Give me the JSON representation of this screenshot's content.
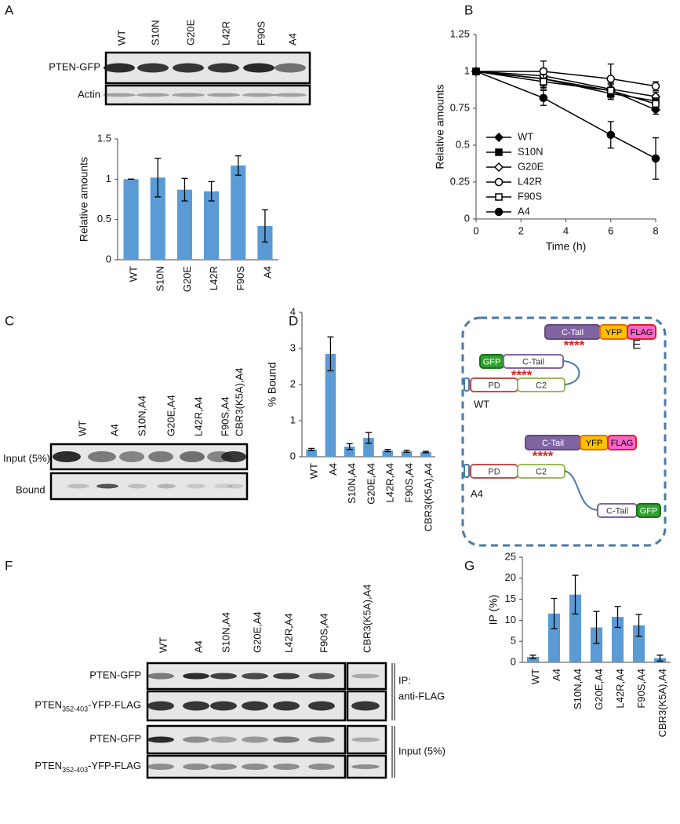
{
  "panels": [
    "A",
    "B",
    "C",
    "D",
    "E",
    "F",
    "G"
  ],
  "blot_a": {
    "lanes": [
      "WT",
      "S10N",
      "G20E",
      "L42R",
      "F90S",
      "A4"
    ],
    "rows": [
      "PTEN-GFP",
      "Actin"
    ]
  },
  "blot_c": {
    "lanes": [
      "WT",
      "A4",
      "S10N,A4",
      "G20E,A4",
      "L42R,A4",
      "F90S,A4",
      "CBR3(K5A),A4"
    ],
    "rows": [
      "Input (5%)",
      "Bound"
    ]
  },
  "blot_f": {
    "lanes": [
      "WT",
      "A4",
      "S10N,A4",
      "G20E,A4",
      "L42R,A4",
      "F90S,A4",
      "CBR3(K5A),A4"
    ],
    "rows": [
      {
        "main": "PTEN-GFP"
      },
      {
        "main": "PTEN",
        "sub": "352-403",
        "tail": "-YFP-FLAG"
      },
      {
        "main": "PTEN-GFP"
      },
      {
        "main": "PTEN",
        "sub": "352-403",
        "tail": "-YFP-FLAG"
      }
    ],
    "groups": [
      {
        "lines": [
          "IP:",
          "anti-FLAG"
        ]
      },
      {
        "lines": [
          "Input (5%)"
        ]
      }
    ]
  },
  "diagram": {
    "top": {
      "tail": "C-Tail",
      "yfp": "YFP",
      "flag": "FLAG",
      "stars": "****"
    },
    "wt": {
      "gfp": "GFP",
      "tail": "C-Tail",
      "stars": "****",
      "pd": "PD",
      "c2": "C2",
      "label": "WT"
    },
    "a4_top": {
      "tail": "C-Tail",
      "yfp": "YFP",
      "flag": "FLAG",
      "stars": "****"
    },
    "a4": {
      "pd": "PD",
      "c2": "C2",
      "label": "A4",
      "tail": "C-Tail",
      "gfp": "GFP"
    }
  },
  "chart_data": [
    {
      "type": "bar",
      "y_label": "Relative amounts",
      "color": "#5b9bd5",
      "categories": [
        "WT",
        "S10N",
        "G20E",
        "L42R",
        "F90S",
        "A4"
      ],
      "values": [
        1.0,
        1.02,
        0.87,
        0.85,
        1.17,
        0.42
      ],
      "errors": [
        0.0,
        0.24,
        0.14,
        0.12,
        0.12,
        0.2
      ],
      "ylim": [
        0,
        1.5
      ],
      "yticks": [
        0,
        0.5,
        1,
        1.5
      ]
    },
    {
      "type": "line",
      "x_label": "Time (h)",
      "y_label": "Relative amounts",
      "x": [
        0,
        3,
        6,
        8
      ],
      "series": [
        {
          "name": "WT",
          "color": "#000000",
          "marker": "diamond",
          "filled": true,
          "values": [
            1,
            0.95,
            0.87,
            0.74
          ],
          "errors": [
            0,
            0.05,
            0.04,
            0.03
          ]
        },
        {
          "name": "S10N",
          "color": "#000000",
          "marker": "square",
          "filled": true,
          "values": [
            1,
            0.95,
            0.85,
            0.8
          ],
          "errors": [
            0,
            0.06,
            0.04,
            0.04
          ]
        },
        {
          "name": "G20E",
          "color": "#000000",
          "marker": "diamond",
          "filled": false,
          "values": [
            1,
            0.97,
            0.88,
            0.83
          ],
          "errors": [
            0,
            0.05,
            0.04,
            0.03
          ]
        },
        {
          "name": "L42R",
          "color": "#000000",
          "marker": "circle",
          "filled": false,
          "values": [
            1,
            1.0,
            0.95,
            0.9
          ],
          "errors": [
            0,
            0.07,
            0.1,
            0.03
          ]
        },
        {
          "name": "F90S",
          "color": "#000000",
          "marker": "square",
          "filled": false,
          "values": [
            1,
            0.93,
            0.87,
            0.78
          ],
          "errors": [
            0,
            0.05,
            0.05,
            0.04
          ]
        },
        {
          "name": "A4",
          "color": "#000000",
          "marker": "circle",
          "filled": true,
          "values": [
            1,
            0.82,
            0.57,
            0.41
          ],
          "errors": [
            0,
            0.05,
            0.09,
            0.14
          ]
        }
      ],
      "xlim": [
        0,
        8
      ],
      "xticks": [
        0,
        2,
        4,
        6,
        8
      ],
      "ylim": [
        0,
        1.25
      ],
      "yticks": [
        0,
        0.25,
        0.5,
        0.75,
        1,
        1.25
      ]
    },
    {
      "type": "bar",
      "y_label": "% Bound",
      "color": "#5b9bd5",
      "categories": [
        "WT",
        "A4",
        "S10N,A4",
        "G20E,A4",
        "L42R,A4",
        "F90S,A4",
        "CBR3(K5A),A4"
      ],
      "values": [
        0.2,
        2.85,
        0.28,
        0.52,
        0.17,
        0.15,
        0.13
      ],
      "errors": [
        0.03,
        0.47,
        0.08,
        0.15,
        0.03,
        0.03,
        0.02
      ],
      "ylim": [
        0,
        4
      ],
      "yticks": [
        0,
        1,
        2,
        3,
        4
      ]
    },
    {
      "type": "bar",
      "y_label": "IP (%)",
      "color": "#5b9bd5",
      "categories": [
        "WT",
        "A4",
        "S10N,A4",
        "G20E,A4",
        "L42R,A4",
        "F90S,A4",
        "CBR3(K5A),A4"
      ],
      "values": [
        1.3,
        11.6,
        16.1,
        8.3,
        10.8,
        8.8,
        1.0
      ],
      "errors": [
        0.4,
        3.6,
        4.6,
        3.8,
        2.5,
        2.6,
        0.7
      ],
      "ylim": [
        0,
        25
      ],
      "yticks": [
        0,
        5,
        10,
        15,
        20,
        25
      ]
    }
  ]
}
